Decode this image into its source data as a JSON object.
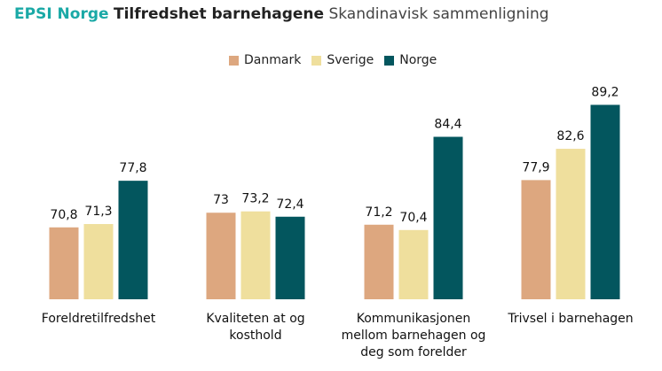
{
  "header": {
    "brand": "EPSI Norge",
    "title": "Tilfredshet barnehagene",
    "subtitle": "Skandinavisk sammenligning"
  },
  "colors": {
    "Danmark": "#dda77f",
    "Sverige": "#efdf9d",
    "Norge": "#03565e"
  },
  "chart_data": {
    "type": "bar",
    "title": "Tilfredshet barnehagene",
    "xlabel": "",
    "ylabel": "",
    "ylim": [
      60,
      92
    ],
    "grid": false,
    "legend_position": "top-center",
    "categories": [
      [
        "Foreldretilfredshet"
      ],
      [
        "Kvaliteten at og",
        "kosthold"
      ],
      [
        "Kommunikasjonen",
        "mellom barnehagen og",
        "deg som forelder"
      ],
      [
        "Trivsel i barnehagen"
      ]
    ],
    "series": [
      {
        "name": "Danmark",
        "values": [
          70.8,
          73,
          71.2,
          77.9
        ],
        "labels": [
          "70,8",
          "73",
          "71,2",
          "77,9"
        ]
      },
      {
        "name": "Sverige",
        "values": [
          71.3,
          73.2,
          70.4,
          82.6
        ],
        "labels": [
          "71,3",
          "73,2",
          "70,4",
          "82,6"
        ]
      },
      {
        "name": "Norge",
        "values": [
          77.8,
          72.4,
          84.4,
          89.2
        ],
        "labels": [
          "77,8",
          "72,4",
          "84,4",
          "89,2"
        ]
      }
    ]
  }
}
